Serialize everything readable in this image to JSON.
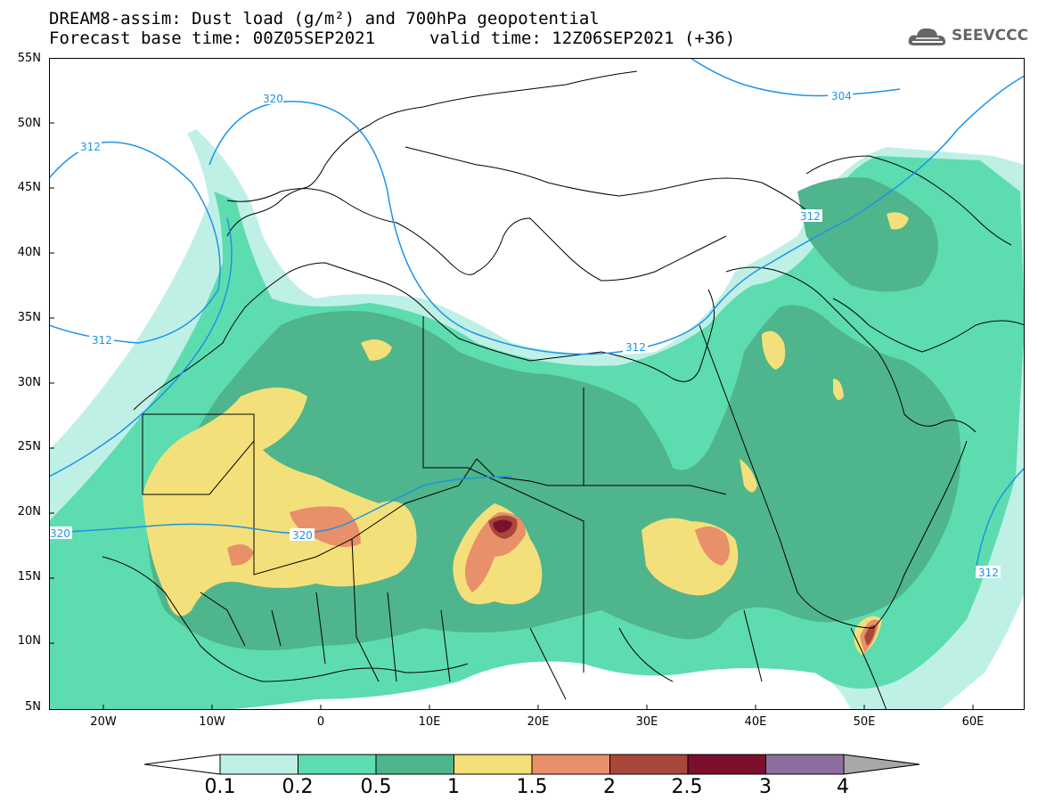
{
  "title_line1": "DREAM8-assim: Dust load (g/m²) and 700hPa geopotential",
  "title_line2_left": "Forecast base time: 00Z05SEP2021",
  "title_line2_right": "valid time: 12Z06SEP2021 (+36)",
  "logo_text": "SEEVCCC",
  "logo_icon": "cloud-icon",
  "lat_labels": [
    "55N",
    "50N",
    "45N",
    "40N",
    "35N",
    "30N",
    "25N",
    "20N",
    "15N",
    "10N",
    "5N"
  ],
  "lon_labels": [
    "20W",
    "10W",
    "0",
    "10E",
    "20E",
    "30E",
    "40E",
    "50E",
    "60E"
  ],
  "contour_labels": [
    "320",
    "312",
    "304",
    "312",
    "312",
    "312",
    "320",
    "320",
    "312"
  ],
  "colorbar": {
    "labels": [
      "0.1",
      "0.2",
      "0.5",
      "1",
      "1.5",
      "2",
      "2.5",
      "3",
      "4"
    ],
    "colors": [
      "#bff0e6",
      "#5ddcb0",
      "#4fb58c",
      "#f4e07a",
      "#e8906a",
      "#a9473a",
      "#7c0f2c",
      "#8d6e9e"
    ],
    "under_color": "#ffffff",
    "over_color": "#a8a8a8"
  },
  "colors": {
    "contour": "#1c94e8",
    "land_border": "#000000"
  }
}
